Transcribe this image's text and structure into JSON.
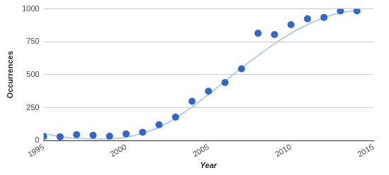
{
  "chart_data": {
    "type": "scatter",
    "x_label": "Year",
    "y_label": "Occurrences",
    "x": [
      1995,
      1996,
      1997,
      1998,
      1999,
      2000,
      2001,
      2002,
      2003,
      2004,
      2005,
      2006,
      2007,
      2008,
      2009,
      2010,
      2011,
      2012,
      2013,
      2014
    ],
    "series": [
      {
        "type": "scatter",
        "marker": "circle",
        "color": "#3366cc",
        "values": [
          30,
          28,
          45,
          40,
          33,
          50,
          63,
          120,
          178,
          298,
          375,
          440,
          545,
          815,
          805,
          880,
          925,
          935,
          985,
          985
        ]
      },
      {
        "type": "line",
        "line_style": "solid",
        "color": "#b3cde8",
        "values": [
          55,
          30,
          15,
          10,
          12,
          25,
          55,
          100,
          170,
          255,
          350,
          450,
          550,
          645,
          735,
          815,
          880,
          935,
          970,
          990
        ]
      }
    ],
    "xlim": [
      1995,
      2015
    ],
    "xticks": [
      1995,
      2000,
      2005,
      2010,
      2015
    ],
    "ylim": [
      0,
      1000
    ],
    "yticks": [
      0,
      250,
      500,
      750,
      1000
    ],
    "grid": true
  }
}
